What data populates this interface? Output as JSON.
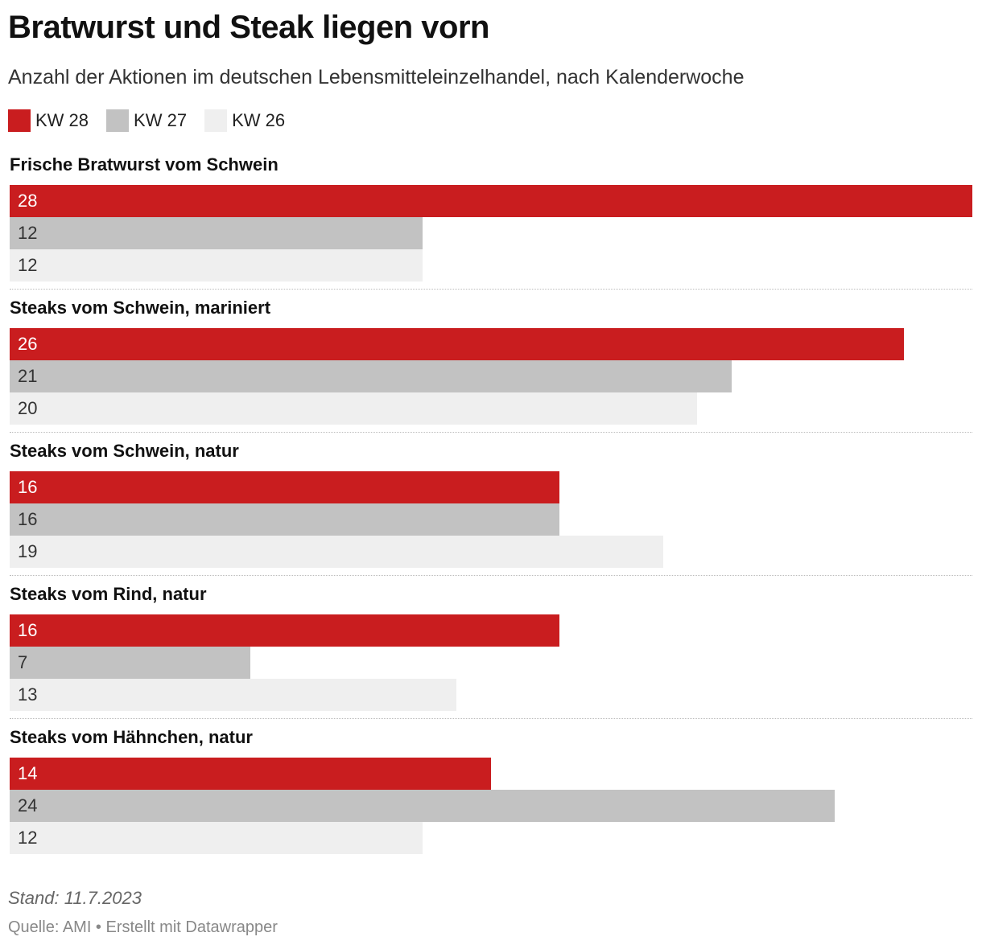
{
  "header": {
    "title": "Bratwurst und Steak liegen vorn",
    "subtitle": "Anzahl der Aktionen im deutschen Lebensmitteleinzelhandel, nach Kalenderwoche"
  },
  "footer": {
    "stand": "Stand: 11.7.2023",
    "source": "Quelle: AMI • Erstellt mit Datawrapper"
  },
  "chart_data": {
    "type": "bar",
    "orientation": "horizontal",
    "title": "Bratwurst und Steak liegen vorn",
    "subtitle": "Anzahl der Aktionen im deutschen Lebensmitteleinzelhandel, nach Kalenderwoche",
    "categories": [
      "Frische Bratwurst vom Schwein",
      "Steaks vom Schwein, mariniert",
      "Steaks vom Schwein, natur",
      "Steaks vom Rind, natur",
      "Steaks vom Hähnchen, natur"
    ],
    "series": [
      {
        "name": "KW 28",
        "color": "#c91d1f",
        "label_color": "#ffffff",
        "values": [
          28,
          26,
          16,
          16,
          14
        ]
      },
      {
        "name": "KW 27",
        "color": "#c2c2c2",
        "label_color": "#333333",
        "values": [
          12,
          21,
          16,
          7,
          24
        ]
      },
      {
        "name": "KW 26",
        "color": "#efefef",
        "label_color": "#333333",
        "values": [
          12,
          20,
          19,
          13,
          12
        ]
      }
    ],
    "xlim": [
      0,
      28
    ],
    "grid": false,
    "legend_position": "top-left"
  }
}
